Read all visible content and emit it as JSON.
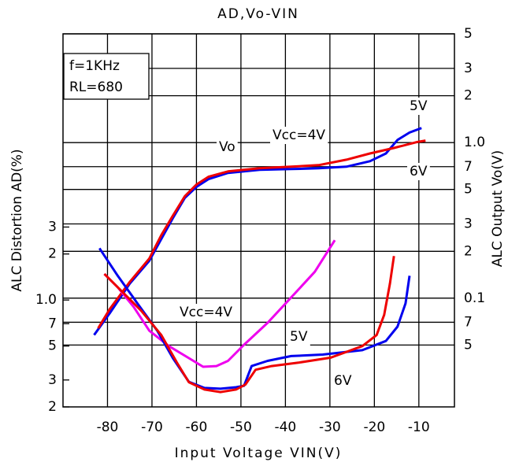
{
  "chart_data": {
    "type": "line",
    "title": "AD,Vo-VIN",
    "x_label": "Input Voltage VIN(V)",
    "y_label": "ALC Distortion AD(%)",
    "y2_label": "ALC Output Vo(V)",
    "xlim": [
      -90,
      -2
    ],
    "xticks": [
      -80,
      -70,
      -60,
      -50,
      -40,
      -30,
      -20,
      -10
    ],
    "ylim": [
      0.2,
      55
    ],
    "yscale": "log",
    "yticks": [
      {
        "value": 0.2,
        "label": "2"
      },
      {
        "value": 0.3,
        "label": "3"
      },
      {
        "value": 0.5,
        "label": "5"
      },
      {
        "value": 0.7,
        "label": "7"
      },
      {
        "value": 1,
        "label": "1.0"
      },
      2,
      3
    ],
    "y2lim": [
      0.02,
      5
    ],
    "y2scale": "log",
    "y2ticks": [
      5,
      3,
      2,
      {
        "value": 1,
        "label": "1.0"
      },
      {
        "value": 0.7,
        "label": "7"
      },
      {
        "value": 0.5,
        "label": "5"
      },
      {
        "value": 0.3,
        "label": "3"
      },
      {
        "value": 0.2,
        "label": "2"
      },
      0.1,
      {
        "value": 0.07,
        "label": "7"
      },
      {
        "value": 0.05,
        "label": "5"
      }
    ],
    "grid": true,
    "annotations": [
      "Vo",
      "Vcc=4V",
      "f=1KHz",
      "RL=680"
    ],
    "series": [
      {
        "name": "5V",
        "color": "#0000ee",
        "axis": "y2",
        "x": [
          -83.0,
          -79.5,
          -75.0,
          -70.6,
          -67.9,
          -65.3,
          -62.6,
          -60.0,
          -57.3,
          -52.9,
          -45.8,
          -38.7,
          -32.5,
          -26.3,
          -21.0,
          -17.4,
          -14.8,
          -12.1,
          -9.4
        ],
        "values": [
          0.058,
          0.08,
          0.124,
          0.174,
          0.24,
          0.327,
          0.441,
          0.519,
          0.582,
          0.638,
          0.668,
          0.676,
          0.684,
          0.7,
          0.759,
          0.851,
          1.04,
          1.16,
          1.24
        ]
      },
      {
        "name": "6V",
        "color": "#ee0000",
        "axis": "y2",
        "x": [
          -82.1,
          -79.5,
          -75.0,
          -70.6,
          -67.9,
          -65.3,
          -62.6,
          -60.0,
          -57.3,
          -52.9,
          -45.8,
          -38.7,
          -32.5,
          -26.3,
          -21.0,
          -15.6,
          -10.3,
          -8.5
        ],
        "values": [
          0.064,
          0.085,
          0.127,
          0.18,
          0.254,
          0.339,
          0.452,
          0.537,
          0.603,
          0.653,
          0.684,
          0.7,
          0.716,
          0.776,
          0.851,
          0.923,
          1.01,
          1.03
        ]
      },
      {
        "name": "Vcc=4V",
        "color": "#ee00ee",
        "axis": "y",
        "x": [
          -80.7,
          -77.7,
          -74.1,
          -70.6,
          -66.2,
          -61.7,
          -58.5,
          -55.5,
          -52.9,
          -49.3,
          -44.0,
          -38.7,
          -33.4,
          -28.9
        ],
        "values": [
          1.48,
          1.21,
          0.9,
          0.63,
          0.5,
          0.417,
          0.366,
          0.37,
          0.4,
          0.51,
          0.71,
          1.04,
          1.53,
          2.46
        ]
      },
      {
        "name": "5V",
        "color": "#0000ee",
        "axis": "y",
        "x": [
          -81.8,
          -77.7,
          -73.3,
          -68.8,
          -65.3,
          -61.7,
          -58.2,
          -54.6,
          -51.1,
          -49.3,
          -47.6,
          -44.0,
          -38.7,
          -31.6,
          -22.7,
          -17.4,
          -14.8,
          -13.0,
          -12.1
        ],
        "values": [
          2.18,
          1.44,
          0.954,
          0.63,
          0.417,
          0.292,
          0.266,
          0.263,
          0.269,
          0.275,
          0.37,
          0.4,
          0.43,
          0.44,
          0.47,
          0.54,
          0.67,
          0.95,
          1.44
        ]
      },
      {
        "name": "6V",
        "color": "#ee0000",
        "axis": "y",
        "x": [
          -80.7,
          -76.8,
          -72.4,
          -67.9,
          -64.4,
          -61.7,
          -58.2,
          -54.6,
          -51.1,
          -49.0,
          -46.7,
          -43.1,
          -36.9,
          -29.8,
          -22.7,
          -19.5,
          -17.8,
          -16.5,
          -15.6
        ],
        "values": [
          1.48,
          1.14,
          0.85,
          0.59,
          0.39,
          0.29,
          0.26,
          0.25,
          0.26,
          0.28,
          0.35,
          0.37,
          0.39,
          0.42,
          0.5,
          0.59,
          0.8,
          1.28,
          1.94
        ]
      }
    ]
  }
}
